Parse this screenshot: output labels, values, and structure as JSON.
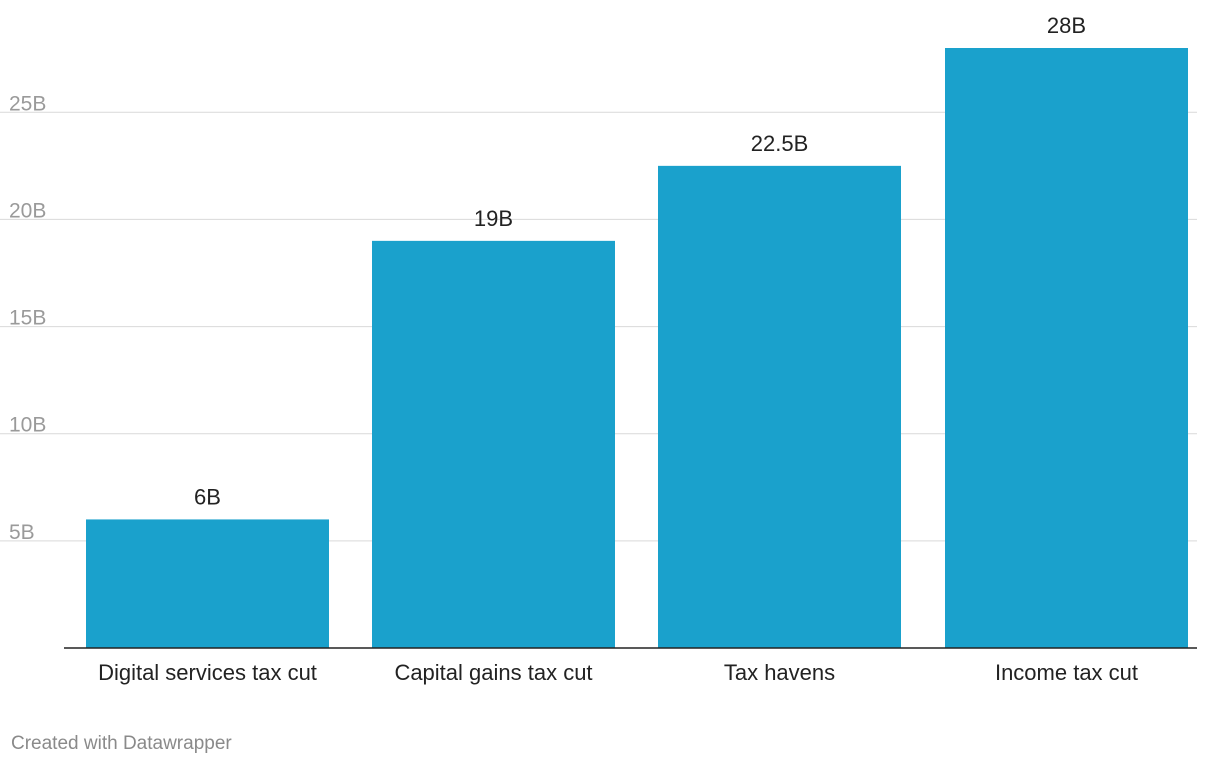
{
  "chart_data": {
    "type": "bar",
    "title": "",
    "xlabel": "",
    "ylabel": "",
    "categories": [
      "Digital services tax cut",
      "Capital gains tax cut",
      "Tax havens",
      "Income tax cut"
    ],
    "values": [
      6,
      19,
      22.5,
      28
    ],
    "value_labels": [
      "6B",
      "19B",
      "22.5B",
      "28B"
    ],
    "ylim": [
      0,
      28
    ],
    "yticks": [
      5,
      10,
      15,
      20,
      25
    ],
    "ytick_labels": [
      "5B",
      "10B",
      "15B",
      "20B",
      "25B"
    ],
    "grid": true,
    "legend": "none",
    "bar_color": "#1aa1cc"
  },
  "footer": {
    "credit": "Created with Datawrapper"
  }
}
